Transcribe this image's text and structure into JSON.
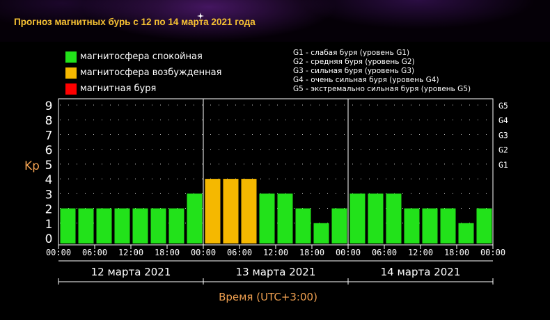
{
  "title": "Прогноз магнитных бурь с 12 по 14 марта 2021 года",
  "legend": [
    {
      "label": "магнитосфера спокойная",
      "color": "#22e21a"
    },
    {
      "label": "магнитосфера возбужденная",
      "color": "#f5b800"
    },
    {
      "label": "магнитная буря",
      "color": "#ff0000"
    }
  ],
  "g_scale": [
    "G1 - слабая буря (уровень G1)",
    "G2 - средняя буря (уровень G2)",
    "G3 - сильная буря (уровень G3)",
    "G4 - очень сильная буря (уровень G4)",
    "G5 - экстремально сильная буря (уровень G5)"
  ],
  "colors": {
    "quiet": "#22e21a",
    "active": "#f5b800",
    "storm": "#ff0000",
    "axis_label": "#f0a050",
    "text": "#ffffff"
  },
  "chart_data": {
    "type": "bar",
    "ylabel": "Kp",
    "xlabel": "Время (UTC+3:00)",
    "ylim": [
      0,
      9
    ],
    "yticks": [
      "0",
      "1",
      "2",
      "3",
      "4",
      "5",
      "6",
      "7",
      "8",
      "9"
    ],
    "g_ticks": [
      {
        "kp": 5,
        "label": "G1"
      },
      {
        "kp": 6,
        "label": "G2"
      },
      {
        "kp": 7,
        "label": "G3"
      },
      {
        "kp": 8,
        "label": "G4"
      },
      {
        "kp": 9,
        "label": "G5"
      }
    ],
    "days": [
      "12 марта 2021",
      "13 марта 2021",
      "14 марта 2021"
    ],
    "time_ticks": [
      "00:00",
      "06:00",
      "12:00",
      "18:00",
      "00:00",
      "06:00",
      "12:00",
      "18:00",
      "00:00",
      "06:00",
      "12:00",
      "18:00",
      "00:00"
    ],
    "values": [
      2,
      2,
      2,
      2,
      2,
      2,
      2,
      3,
      4,
      4,
      4,
      3,
      3,
      2,
      1,
      2,
      3,
      3,
      3,
      2,
      2,
      2,
      1,
      2
    ],
    "grid": true
  }
}
